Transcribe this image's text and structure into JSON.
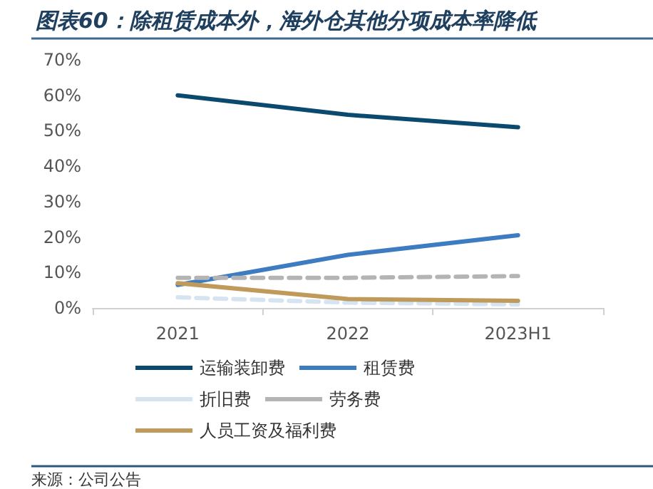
{
  "chart_data": {
    "type": "line",
    "title": "图表60：除租赁成本外，海外仓其他分项成本率降低",
    "categories": [
      "2021",
      "2022",
      "2023H1"
    ],
    "series": [
      {
        "name": "运输装卸费",
        "color": "#0b4a6e",
        "values": [
          60,
          54.5,
          51
        ],
        "line_style": "solid"
      },
      {
        "name": "租赁费",
        "color": "#3d7cc0",
        "values": [
          6.5,
          15,
          20.5
        ],
        "line_style": "solid"
      },
      {
        "name": "折旧费",
        "color": "#d6e4f2",
        "values": [
          3,
          1.5,
          1
        ],
        "line_style": "dashed"
      },
      {
        "name": "劳务费",
        "color": "#b4b4b4",
        "values": [
          8.5,
          8.5,
          9
        ],
        "line_style": "dashed"
      },
      {
        "name": "人员工资及福利费",
        "color": "#c09a5a",
        "values": [
          7,
          2.5,
          2
        ],
        "line_style": "solid"
      }
    ],
    "ylim": [
      0,
      70
    ],
    "yticks": [
      {
        "value": 0,
        "label": "0%"
      },
      {
        "value": 10,
        "label": "10%"
      },
      {
        "value": 20,
        "label": "20%"
      },
      {
        "value": 30,
        "label": "30%"
      },
      {
        "value": 40,
        "label": "40%"
      },
      {
        "value": 50,
        "label": "50%"
      },
      {
        "value": 60,
        "label": "60%"
      },
      {
        "value": 70,
        "label": "70%"
      }
    ],
    "grid": false,
    "legend": "bottom",
    "marker": "none",
    "annotations": [
      "来源：公司公告"
    ]
  }
}
